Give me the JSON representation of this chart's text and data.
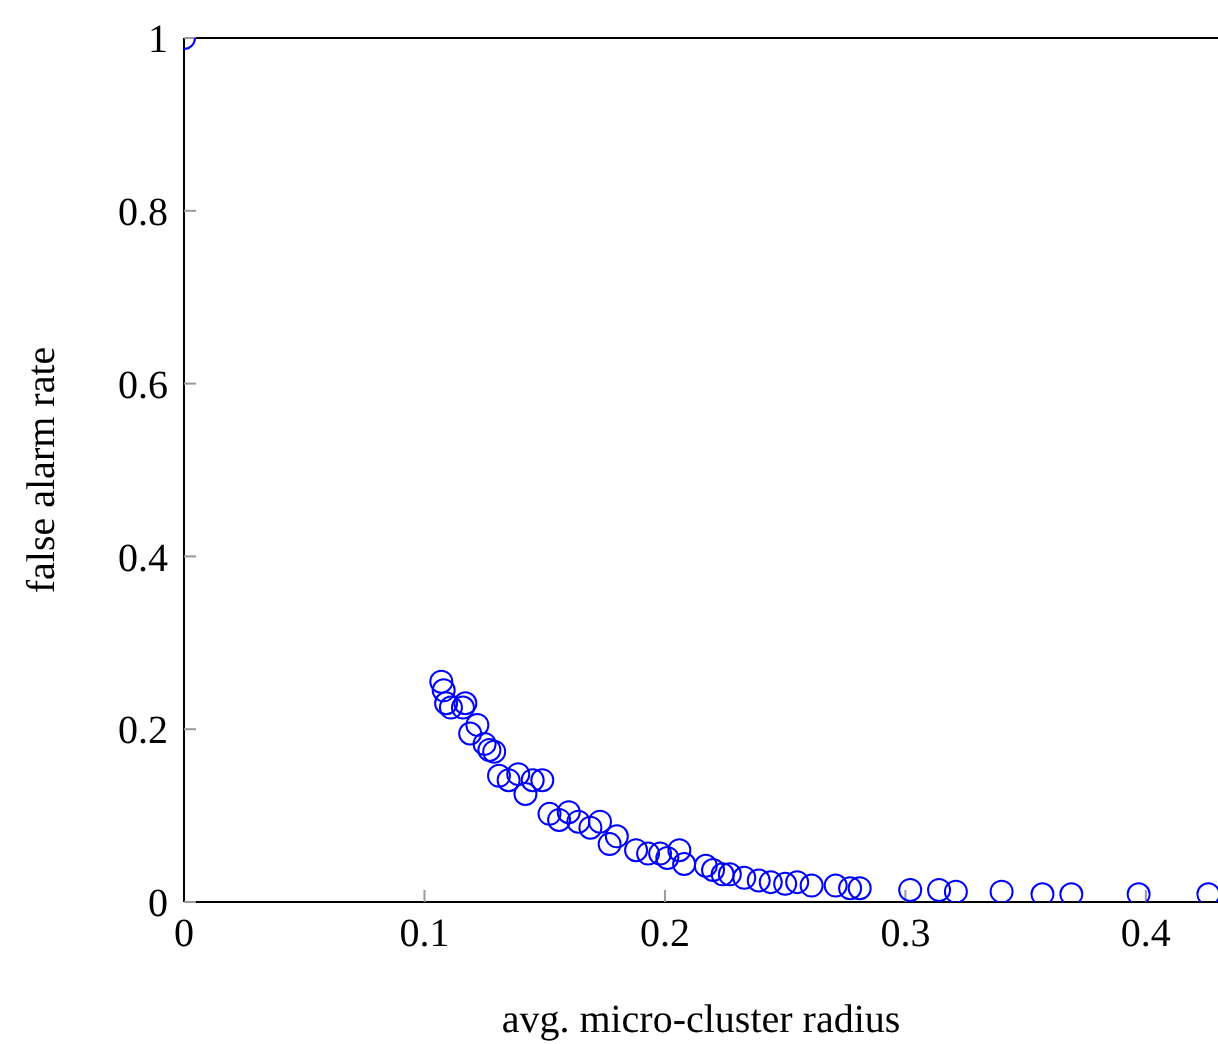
{
  "chart_data": {
    "type": "scatter",
    "xlabel": "avg. micro-cluster radius",
    "ylabel": "false alarm rate",
    "marker": "circle",
    "grid": false,
    "legend": false,
    "xlim": [
      0,
      0.43
    ],
    "xticks": [
      0,
      0.1,
      0.2,
      0.3,
      0.4
    ],
    "ylim": [
      0,
      1
    ],
    "yticks": [
      0,
      0.2,
      0.4,
      0.6,
      0.8,
      1
    ],
    "series": [
      {
        "color": "#0000ff",
        "x": [
          0,
          0.107,
          0.108,
          0.109,
          0.111,
          0.116,
          0.117,
          0.119,
          0.122,
          0.125,
          0.127,
          0.129,
          0.131,
          0.135,
          0.139,
          0.142,
          0.145,
          0.149,
          0.152,
          0.156,
          0.16,
          0.164,
          0.169,
          0.173,
          0.177,
          0.18,
          0.188,
          0.193,
          0.198,
          0.201,
          0.206,
          0.208,
          0.217,
          0.22,
          0.224,
          0.227,
          0.233,
          0.239,
          0.244,
          0.25,
          0.255,
          0.261,
          0.271,
          0.277,
          0.281,
          0.302,
          0.314,
          0.321,
          0.34,
          0.357,
          0.369,
          0.397,
          0.426
        ],
        "values": [
          1,
          0.255,
          0.245,
          0.23,
          0.225,
          0.225,
          0.23,
          0.195,
          0.205,
          0.183,
          0.176,
          0.174,
          0.146,
          0.141,
          0.148,
          0.125,
          0.141,
          0.141,
          0.102,
          0.095,
          0.104,
          0.093,
          0.086,
          0.093,
          0.067,
          0.076,
          0.06,
          0.056,
          0.056,
          0.051,
          0.06,
          0.044,
          0.042,
          0.037,
          0.032,
          0.032,
          0.028,
          0.025,
          0.023,
          0.021,
          0.023,
          0.019,
          0.019,
          0.016,
          0.016,
          0.014,
          0.014,
          0.012,
          0.012,
          0.009,
          0.009,
          0.009,
          0.009
        ]
      }
    ]
  }
}
